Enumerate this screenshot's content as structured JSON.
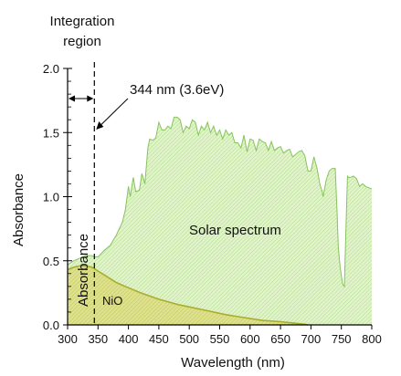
{
  "chart_data": {
    "type": "area",
    "title": "",
    "xlabel": "Wavelength (nm)",
    "ylabel": "Absorbance",
    "xlim": [
      300,
      800
    ],
    "ylim": [
      0.0,
      2.0
    ],
    "x_ticks": [
      "300",
      "350",
      "400",
      "450",
      "500",
      "550",
      "600",
      "650",
      "700",
      "750",
      "800"
    ],
    "y_ticks": [
      "0.0",
      "0.5",
      "1.0",
      "1.5",
      "2.0"
    ],
    "grid": false,
    "colors": {
      "solar_fill": "#d5efb6",
      "solar_edge": "#86c45a",
      "nio_fill": "#d9dc7a",
      "nio_edge": "#a8ad2c"
    },
    "annotations": {
      "integration_region_line1": "Integration",
      "integration_region_line2": "region",
      "cutoff": "344 nm (3.6eV)",
      "cutoff_x": 344,
      "solar_label": "Solar spectrum",
      "nio_label": "NiO",
      "absorbance_in_region": "Absorbance"
    },
    "series": [
      {
        "name": "Solar spectrum",
        "x": [
          300,
          310,
          320,
          330,
          340,
          344,
          350,
          360,
          370,
          380,
          390,
          395,
          400,
          403,
          408,
          412,
          418,
          422,
          427,
          432,
          435,
          440,
          445,
          450,
          455,
          460,
          465,
          470,
          475,
          480,
          485,
          490,
          495,
          500,
          505,
          510,
          515,
          520,
          525,
          530,
          535,
          540,
          545,
          550,
          555,
          560,
          565,
          570,
          575,
          580,
          585,
          590,
          595,
          600,
          605,
          610,
          615,
          620,
          625,
          630,
          635,
          640,
          645,
          650,
          655,
          660,
          665,
          670,
          675,
          680,
          685,
          690,
          695,
          700,
          705,
          710,
          715,
          718,
          720,
          725,
          730,
          735,
          740,
          743,
          745,
          748,
          752,
          755,
          758,
          760,
          762,
          765,
          770,
          775,
          780,
          785,
          790,
          795,
          800
        ],
        "y": [
          0.47,
          0.5,
          0.52,
          0.54,
          0.54,
          0.53,
          0.53,
          0.58,
          0.62,
          0.7,
          0.8,
          0.9,
          1.08,
          1.0,
          1.15,
          1.04,
          1.05,
          1.18,
          1.1,
          1.38,
          1.45,
          1.44,
          1.46,
          1.58,
          1.52,
          1.52,
          1.55,
          1.53,
          1.62,
          1.62,
          1.6,
          1.5,
          1.55,
          1.53,
          1.6,
          1.58,
          1.48,
          1.55,
          1.52,
          1.58,
          1.5,
          1.55,
          1.48,
          1.52,
          1.45,
          1.52,
          1.48,
          1.5,
          1.42,
          1.42,
          1.38,
          1.48,
          1.35,
          1.45,
          1.44,
          1.36,
          1.45,
          1.43,
          1.42,
          1.36,
          1.43,
          1.36,
          1.38,
          1.39,
          1.34,
          1.36,
          1.37,
          1.31,
          1.33,
          1.35,
          1.36,
          1.32,
          1.2,
          1.2,
          1.31,
          1.22,
          1.09,
          1.05,
          1.0,
          1.13,
          1.2,
          1.22,
          1.22,
          0.88,
          0.6,
          0.45,
          0.32,
          0.3,
          0.82,
          1.16,
          1.15,
          1.15,
          1.16,
          1.14,
          1.08,
          1.1,
          1.08,
          1.07,
          1.06
        ]
      },
      {
        "name": "NiO",
        "x": [
          300,
          310,
          320,
          330,
          340,
          350,
          360,
          380,
          400,
          420,
          450,
          480,
          500,
          530,
          560,
          600,
          620,
          650,
          670,
          690,
          695
        ],
        "y": [
          0.43,
          0.45,
          0.46,
          0.46,
          0.45,
          0.42,
          0.39,
          0.33,
          0.29,
          0.25,
          0.2,
          0.16,
          0.14,
          0.11,
          0.08,
          0.05,
          0.035,
          0.025,
          0.015,
          0.005,
          0.0
        ]
      }
    ]
  }
}
